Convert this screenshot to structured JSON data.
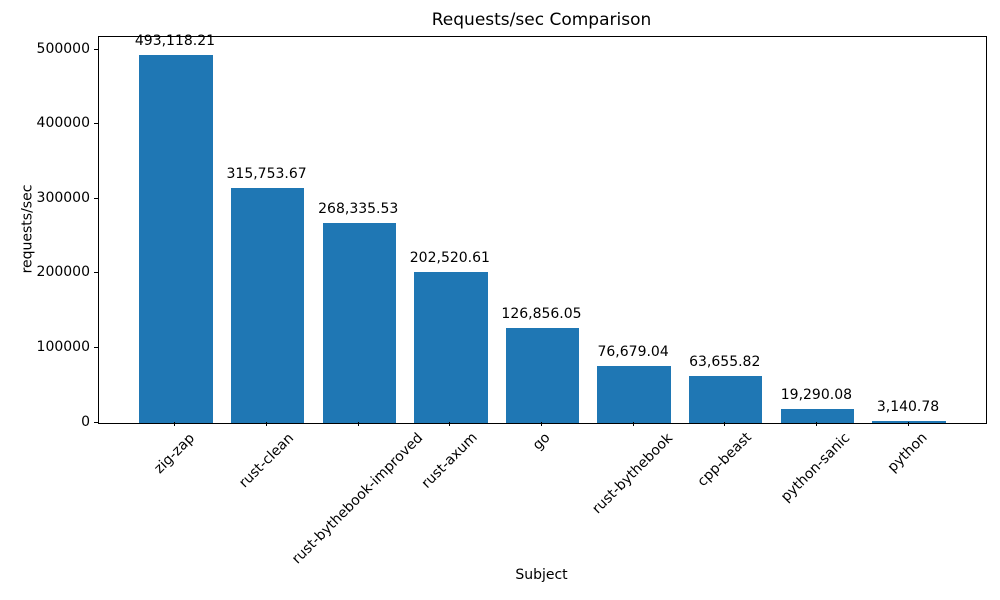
{
  "chart_data": {
    "type": "bar",
    "title": "Requests/sec Comparison",
    "xlabel": "Subject",
    "ylabel": "requests/sec",
    "categories": [
      "zig-zap",
      "rust-clean",
      "rust-bythebook-improved",
      "rust-axum",
      "go",
      "rust-bythebook",
      "cpp-beast",
      "python-sanic",
      "python"
    ],
    "values": [
      493118.21,
      315753.67,
      268335.53,
      202520.61,
      126856.05,
      76679.04,
      63655.82,
      19290.08,
      3140.78
    ],
    "value_labels": [
      "493,118.21",
      "315,753.67",
      "268,335.53",
      "202,520.61",
      "126,856.05",
      "76,679.04",
      "63,655.82",
      "19,290.08",
      "3,140.78"
    ],
    "yticks": [
      0,
      100000,
      200000,
      300000,
      400000,
      500000
    ],
    "ytick_labels": [
      "0",
      "100000",
      "200000",
      "300000",
      "400000",
      "500000"
    ],
    "ylim": [
      0,
      517774
    ],
    "bar_color": "#1f77b4",
    "grid": false,
    "legend": null,
    "background_color": "#ffffff"
  }
}
